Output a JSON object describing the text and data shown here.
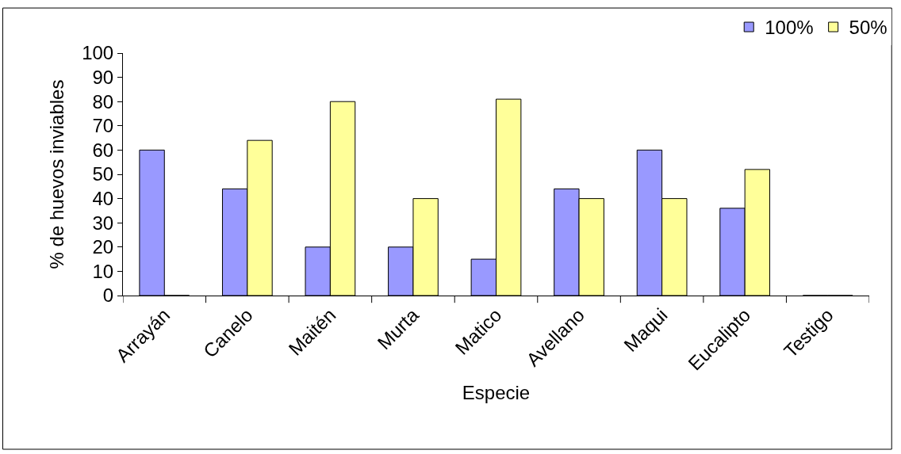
{
  "chart_data": {
    "type": "bar",
    "xlabel": "Especie",
    "ylabel": "% de huevos inviables",
    "categories": [
      "Arrayán",
      "Canelo",
      "Maitén",
      "Murta",
      "Matico",
      "Avellano",
      "Maqui",
      "Eucalipto",
      "Testigo"
    ],
    "series": [
      {
        "name": "100%",
        "color": "#9999ff",
        "values": [
          60,
          44,
          20,
          20,
          15,
          44,
          60,
          36,
          0
        ]
      },
      {
        "name": "50%",
        "color": "#ffff99",
        "values": [
          0,
          64,
          80,
          40,
          81,
          40,
          40,
          52,
          0
        ]
      }
    ],
    "ylim": [
      0,
      100
    ],
    "yticks": [
      0,
      10,
      20,
      30,
      40,
      50,
      60,
      70,
      80,
      90,
      100
    ],
    "legend": "top right"
  }
}
